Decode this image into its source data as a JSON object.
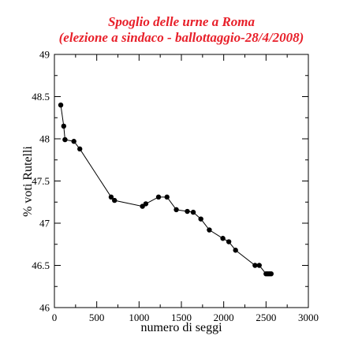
{
  "colors": {
    "title": "#e8202a",
    "axes": "#000000",
    "series": "#000000",
    "background": "#ffffff"
  },
  "chart_data": {
    "type": "line",
    "title": "Spoglio delle urne a Roma",
    "subtitle": "(elezione a sindaco - ballottaggio-28/4/2008)",
    "xlabel": "numero di seggi",
    "ylabel": "% voti Rutelli",
    "xlim": [
      0,
      3000
    ],
    "ylim": [
      46,
      49
    ],
    "x_ticks": [
      0,
      500,
      1000,
      1500,
      2000,
      2500,
      3000
    ],
    "y_ticks": [
      46,
      46.5,
      47,
      47.5,
      48,
      48.5,
      49
    ],
    "x_tick_labels": [
      "0",
      "500",
      "1000",
      "1500",
      "2000",
      "2500",
      "3000"
    ],
    "y_tick_labels": [
      "46",
      "46.5",
      "47",
      "47.5",
      "48",
      "48.5",
      "49"
    ],
    "grid": false,
    "markers": "filled-circle",
    "series": [
      {
        "x": [
          75,
          110,
          125,
          230,
          300,
          670,
          710,
          1040,
          1080,
          1230,
          1330,
          1440,
          1570,
          1640,
          1730,
          1830,
          1990,
          2060,
          2140,
          2370,
          2420,
          2500,
          2520,
          2540,
          2560
        ],
        "y": [
          48.4,
          48.15,
          47.99,
          47.97,
          47.88,
          47.31,
          47.27,
          47.2,
          47.23,
          47.31,
          47.31,
          47.16,
          47.14,
          47.13,
          47.05,
          46.92,
          46.82,
          46.78,
          46.68,
          46.5,
          46.5,
          46.4,
          46.4,
          46.4,
          46.4
        ]
      }
    ]
  }
}
